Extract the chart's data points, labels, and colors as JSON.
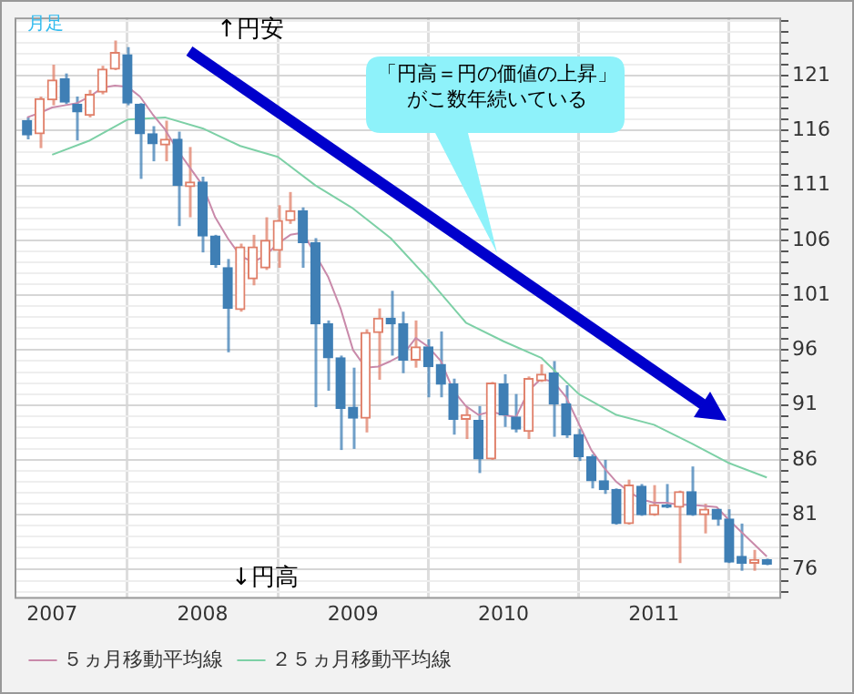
{
  "chart_data": {
    "type": "candlestick",
    "annotations": [
      "月足",
      "↑円安",
      "↓円高",
      "「円高＝円の価値の上昇」がこ数年続いている"
    ],
    "x": [
      "2006-11",
      "2006-12",
      "2007-01",
      "2007-02",
      "2007-03",
      "2007-04",
      "2007-05",
      "2007-06",
      "2007-07",
      "2007-08",
      "2007-09",
      "2007-10",
      "2007-11",
      "2007-12",
      "2008-01",
      "2008-02",
      "2008-03",
      "2008-04",
      "2008-05",
      "2008-06",
      "2008-07",
      "2008-08",
      "2008-09",
      "2008-10",
      "2008-11",
      "2008-12",
      "2009-01",
      "2009-02",
      "2009-03",
      "2009-04",
      "2009-05",
      "2009-06",
      "2009-07",
      "2009-08",
      "2009-09",
      "2009-10",
      "2009-11",
      "2009-12",
      "2010-01",
      "2010-02",
      "2010-03",
      "2010-04",
      "2010-05",
      "2010-06",
      "2010-07",
      "2010-08",
      "2010-09",
      "2010-10",
      "2010-11",
      "2010-12",
      "2011-01",
      "2011-02",
      "2011-03",
      "2011-04",
      "2011-05",
      "2011-06",
      "2011-07",
      "2011-08",
      "2011-09",
      "2011-10"
    ],
    "ohlc": [
      [
        116.9,
        117.2,
        115.2,
        115.6
      ],
      [
        115.7,
        119.1,
        114.4,
        118.9
      ],
      [
        118.8,
        122.0,
        118.3,
        120.6
      ],
      [
        120.7,
        121.2,
        118.4,
        118.6
      ],
      [
        118.4,
        119.1,
        115.1,
        117.7
      ],
      [
        117.4,
        119.7,
        117.2,
        119.3
      ],
      [
        119.5,
        121.9,
        119.3,
        121.6
      ],
      [
        121.6,
        124.2,
        121.5,
        123.1
      ],
      [
        122.9,
        123.6,
        118.3,
        118.5
      ],
      [
        118.4,
        118.5,
        111.6,
        115.7
      ],
      [
        115.7,
        116.4,
        113.2,
        114.8
      ],
      [
        114.7,
        116.9,
        113.2,
        115.2
      ],
      [
        115.2,
        115.9,
        107.3,
        111.0
      ],
      [
        110.9,
        114.5,
        108.1,
        111.3
      ],
      [
        111.3,
        111.8,
        104.9,
        106.4
      ],
      [
        106.4,
        106.5,
        103.5,
        103.8
      ],
      [
        103.5,
        104.3,
        95.8,
        99.8
      ],
      [
        99.7,
        105.7,
        99.5,
        105.4
      ],
      [
        102.5,
        106.5,
        101.9,
        105.4
      ],
      [
        103.5,
        108.1,
        103.3,
        106.0
      ],
      [
        105.1,
        109.2,
        103.5,
        107.8
      ],
      [
        107.8,
        110.4,
        107.5,
        108.7
      ],
      [
        108.7,
        109.0,
        103.5,
        105.8
      ],
      [
        105.8,
        106.2,
        90.8,
        98.4
      ],
      [
        98.4,
        98.7,
        92.3,
        95.3
      ],
      [
        95.3,
        95.5,
        86.9,
        90.7
      ],
      [
        90.8,
        94.4,
        87.0,
        89.8
      ],
      [
        89.8,
        97.9,
        88.5,
        97.6
      ],
      [
        97.6,
        99.8,
        93.3,
        98.9
      ],
      [
        98.9,
        101.4,
        95.5,
        98.4
      ],
      [
        98.4,
        99.5,
        93.9,
        95.1
      ],
      [
        95.1,
        98.7,
        94.4,
        96.3
      ],
      [
        96.3,
        97.0,
        91.7,
        94.5
      ],
      [
        94.7,
        97.7,
        91.7,
        92.9
      ],
      [
        92.9,
        93.4,
        88.3,
        89.7
      ],
      [
        89.7,
        90.8,
        87.9,
        90.1
      ],
      [
        89.6,
        90.9,
        84.8,
        86.1
      ],
      [
        86.1,
        93.1,
        86.0,
        93.0
      ],
      [
        92.9,
        93.8,
        89.0,
        90.1
      ],
      [
        89.9,
        92.0,
        88.5,
        88.8
      ],
      [
        88.6,
        93.6,
        87.9,
        93.4
      ],
      [
        93.2,
        94.7,
        93.1,
        93.8
      ],
      [
        93.9,
        95.0,
        88.1,
        91.1
      ],
      [
        91.1,
        92.8,
        88.0,
        88.3
      ],
      [
        88.3,
        88.8,
        85.9,
        86.3
      ],
      [
        86.3,
        86.5,
        83.4,
        84.1
      ],
      [
        84.1,
        86.0,
        82.9,
        83.3
      ],
      [
        83.3,
        83.4,
        80.1,
        80.2
      ],
      [
        80.2,
        84.2,
        80.1,
        83.7
      ],
      [
        83.6,
        83.8,
        80.9,
        81.0
      ],
      [
        81.0,
        83.7,
        80.9,
        81.9
      ],
      [
        81.9,
        83.8,
        81.6,
        81.7
      ],
      [
        81.7,
        83.2,
        76.6,
        83.1
      ],
      [
        83.1,
        85.4,
        80.9,
        81.0
      ],
      [
        81.0,
        82.0,
        79.3,
        81.5
      ],
      [
        81.5,
        81.5,
        80.0,
        80.6
      ],
      [
        80.6,
        81.5,
        76.6,
        76.7
      ],
      [
        77.2,
        80.2,
        75.9,
        76.6
      ],
      [
        76.6,
        77.8,
        75.9,
        76.9
      ],
      [
        76.9,
        77.0,
        76.4,
        76.5
      ]
    ],
    "colors": [
      "#3f7fb5",
      "#e0806a",
      "#e0806a",
      "#3f7fb5",
      "#3f7fb5",
      "#e0806a",
      "#e0806a",
      "#e0806a",
      "#3f7fb5",
      "#3f7fb5",
      "#3f7fb5",
      "#e0806a",
      "#3f7fb5",
      "#e0806a",
      "#3f7fb5",
      "#3f7fb5",
      "#3f7fb5",
      "#e0806a",
      "#e0806a",
      "#e0806a",
      "#e0806a",
      "#e0806a",
      "#3f7fb5",
      "#3f7fb5",
      "#3f7fb5",
      "#3f7fb5",
      "#3f7fb5",
      "#e0806a",
      "#e0806a",
      "#3f7fb5",
      "#3f7fb5",
      "#e0806a",
      "#3f7fb5",
      "#3f7fb5",
      "#3f7fb5",
      "#e0806a",
      "#3f7fb5",
      "#e0806a",
      "#3f7fb5",
      "#3f7fb5",
      "#e0806a",
      "#e0806a",
      "#3f7fb5",
      "#3f7fb5",
      "#3f7fb5",
      "#3f7fb5",
      "#3f7fb5",
      "#3f7fb5",
      "#e0806a",
      "#3f7fb5",
      "#e0806a",
      "#3f7fb5",
      "#e0806a",
      "#3f7fb5",
      "#e0806a",
      "#3f7fb5",
      "#3f7fb5",
      "#3f7fb5",
      "#e0806a",
      "#3f7fb5"
    ],
    "series": [
      {
        "name": "５ヵ月移動平均線",
        "type": "line",
        "color": "#c98aaa",
        "x": [
          "2006-11",
          "2006-12",
          "2007-01",
          "2007-02",
          "2007-03",
          "2007-04",
          "2007-05",
          "2007-06",
          "2007-07",
          "2007-08",
          "2007-09",
          "2007-10",
          "2007-11",
          "2007-12",
          "2008-01",
          "2008-02",
          "2008-03",
          "2008-04",
          "2008-05",
          "2008-06",
          "2008-07",
          "2008-08",
          "2008-09",
          "2008-10",
          "2008-11",
          "2008-12",
          "2009-01",
          "2009-02",
          "2009-03",
          "2009-04",
          "2009-05",
          "2009-06",
          "2009-07",
          "2009-08",
          "2009-09",
          "2009-10",
          "2009-11",
          "2009-12",
          "2010-01",
          "2010-02",
          "2010-03",
          "2010-04",
          "2010-05",
          "2010-06",
          "2010-07",
          "2010-08",
          "2010-09",
          "2010-10",
          "2010-11",
          "2010-12",
          "2011-01",
          "2011-02",
          "2011-03",
          "2011-04",
          "2011-05",
          "2011-06",
          "2011-07",
          "2011-08",
          "2011-09",
          "2011-10"
        ],
        "values": [
          117.2,
          117.6,
          118.1,
          118.3,
          118.5,
          119.1,
          119.9,
          120.1,
          120.0,
          119.1,
          117.5,
          116.1,
          114.2,
          112.6,
          111.0,
          108.1,
          106.2,
          104.6,
          104.0,
          104.6,
          105.7,
          106.5,
          106.7,
          null,
          102.7,
          99.8,
          96.0,
          94.4,
          94.5,
          95.0,
          95.6,
          97.1,
          96.3,
          95.0,
          92.3,
          90.9,
          90.1,
          90.4,
          90.1,
          89.9,
          92.3,
          93.4,
          93.1,
          91.7,
          89.3,
          86.9,
          85.3,
          84.0,
          83.1,
          82.4,
          82.1,
          82.1,
          81.9,
          81.9,
          81.8,
          81.7,
          80.5,
          79.4,
          78.3,
          77.2
        ]
      },
      {
        "name": "２５ヵ月移動平均線",
        "type": "line",
        "color": "#7dd0a6",
        "x": [
          "2007-01",
          "2007-04",
          "2007-07",
          "2007-10",
          "2008-01",
          "2008-04",
          "2008-07",
          "2008-10",
          "2009-01",
          "2009-04",
          "2009-07",
          "2009-10",
          "2010-01",
          "2010-04",
          "2010-07",
          "2010-10",
          "2011-01",
          "2011-04",
          "2011-07",
          "2011-10"
        ],
        "values": [
          113.8,
          115.1,
          117.0,
          117.2,
          116.2,
          114.6,
          113.6,
          111.0,
          108.9,
          106.2,
          102.5,
          98.5,
          96.8,
          95.3,
          92.0,
          90.1,
          89.2,
          87.5,
          85.7,
          84.4
        ]
      }
    ],
    "xlim": [
      "2006-10",
      "2011-11"
    ],
    "xticks": [
      {
        "value": "2007-01",
        "label": "2007"
      },
      {
        "value": "2008-01",
        "label": "2008"
      },
      {
        "value": "2009-01",
        "label": "2009"
      },
      {
        "value": "2010-01",
        "label": "2010"
      },
      {
        "value": "2011-01",
        "label": "2011"
      }
    ],
    "ylim": [
      73.5,
      126.3
    ],
    "yticks": [
      {
        "value": 74,
        "label": null
      },
      {
        "value": 75,
        "label": null
      },
      76,
      {
        "value": 77,
        "label": null
      },
      {
        "value": 78,
        "label": null
      },
      {
        "value": 79,
        "label": null
      },
      {
        "value": 80,
        "label": null
      },
      81,
      {
        "value": 82,
        "label": null
      },
      {
        "value": 83,
        "label": null
      },
      {
        "value": 84,
        "label": null
      },
      {
        "value": 85,
        "label": null
      },
      86,
      {
        "value": 87,
        "label": null
      },
      {
        "value": 88,
        "label": null
      },
      {
        "value": 89,
        "label": null
      },
      {
        "value": 90,
        "label": null
      },
      91,
      {
        "value": 92,
        "label": null
      },
      {
        "value": 93,
        "label": null
      },
      {
        "value": 94,
        "label": null
      },
      {
        "value": 95,
        "label": null
      },
      96,
      {
        "value": 97,
        "label": null
      },
      {
        "value": 98,
        "label": null
      },
      {
        "value": 99,
        "label": null
      },
      {
        "value": 100,
        "label": null
      },
      101,
      {
        "value": 102,
        "label": null
      },
      {
        "value": 103,
        "label": null
      },
      {
        "value": 104,
        "label": null
      },
      {
        "value": 105,
        "label": null
      },
      106,
      {
        "value": 107,
        "label": null
      },
      {
        "value": 108,
        "label": null
      },
      {
        "value": 109,
        "label": null
      },
      {
        "value": 110,
        "label": null
      },
      111,
      {
        "value": 112,
        "label": null
      },
      {
        "value": 113,
        "label": null
      },
      {
        "value": 114,
        "label": null
      },
      {
        "value": 115,
        "label": null
      },
      116,
      {
        "value": 117,
        "label": null
      },
      {
        "value": 118,
        "label": null
      },
      {
        "value": 119,
        "label": null
      },
      {
        "value": 120,
        "label": null
      },
      121,
      {
        "value": 122,
        "label": null
      },
      {
        "value": 123,
        "label": null
      },
      {
        "value": 124,
        "label": null
      },
      {
        "value": 125,
        "label": null
      },
      {
        "value": 126,
        "label": null
      }
    ],
    "grid": true,
    "legend": "bottom"
  }
}
